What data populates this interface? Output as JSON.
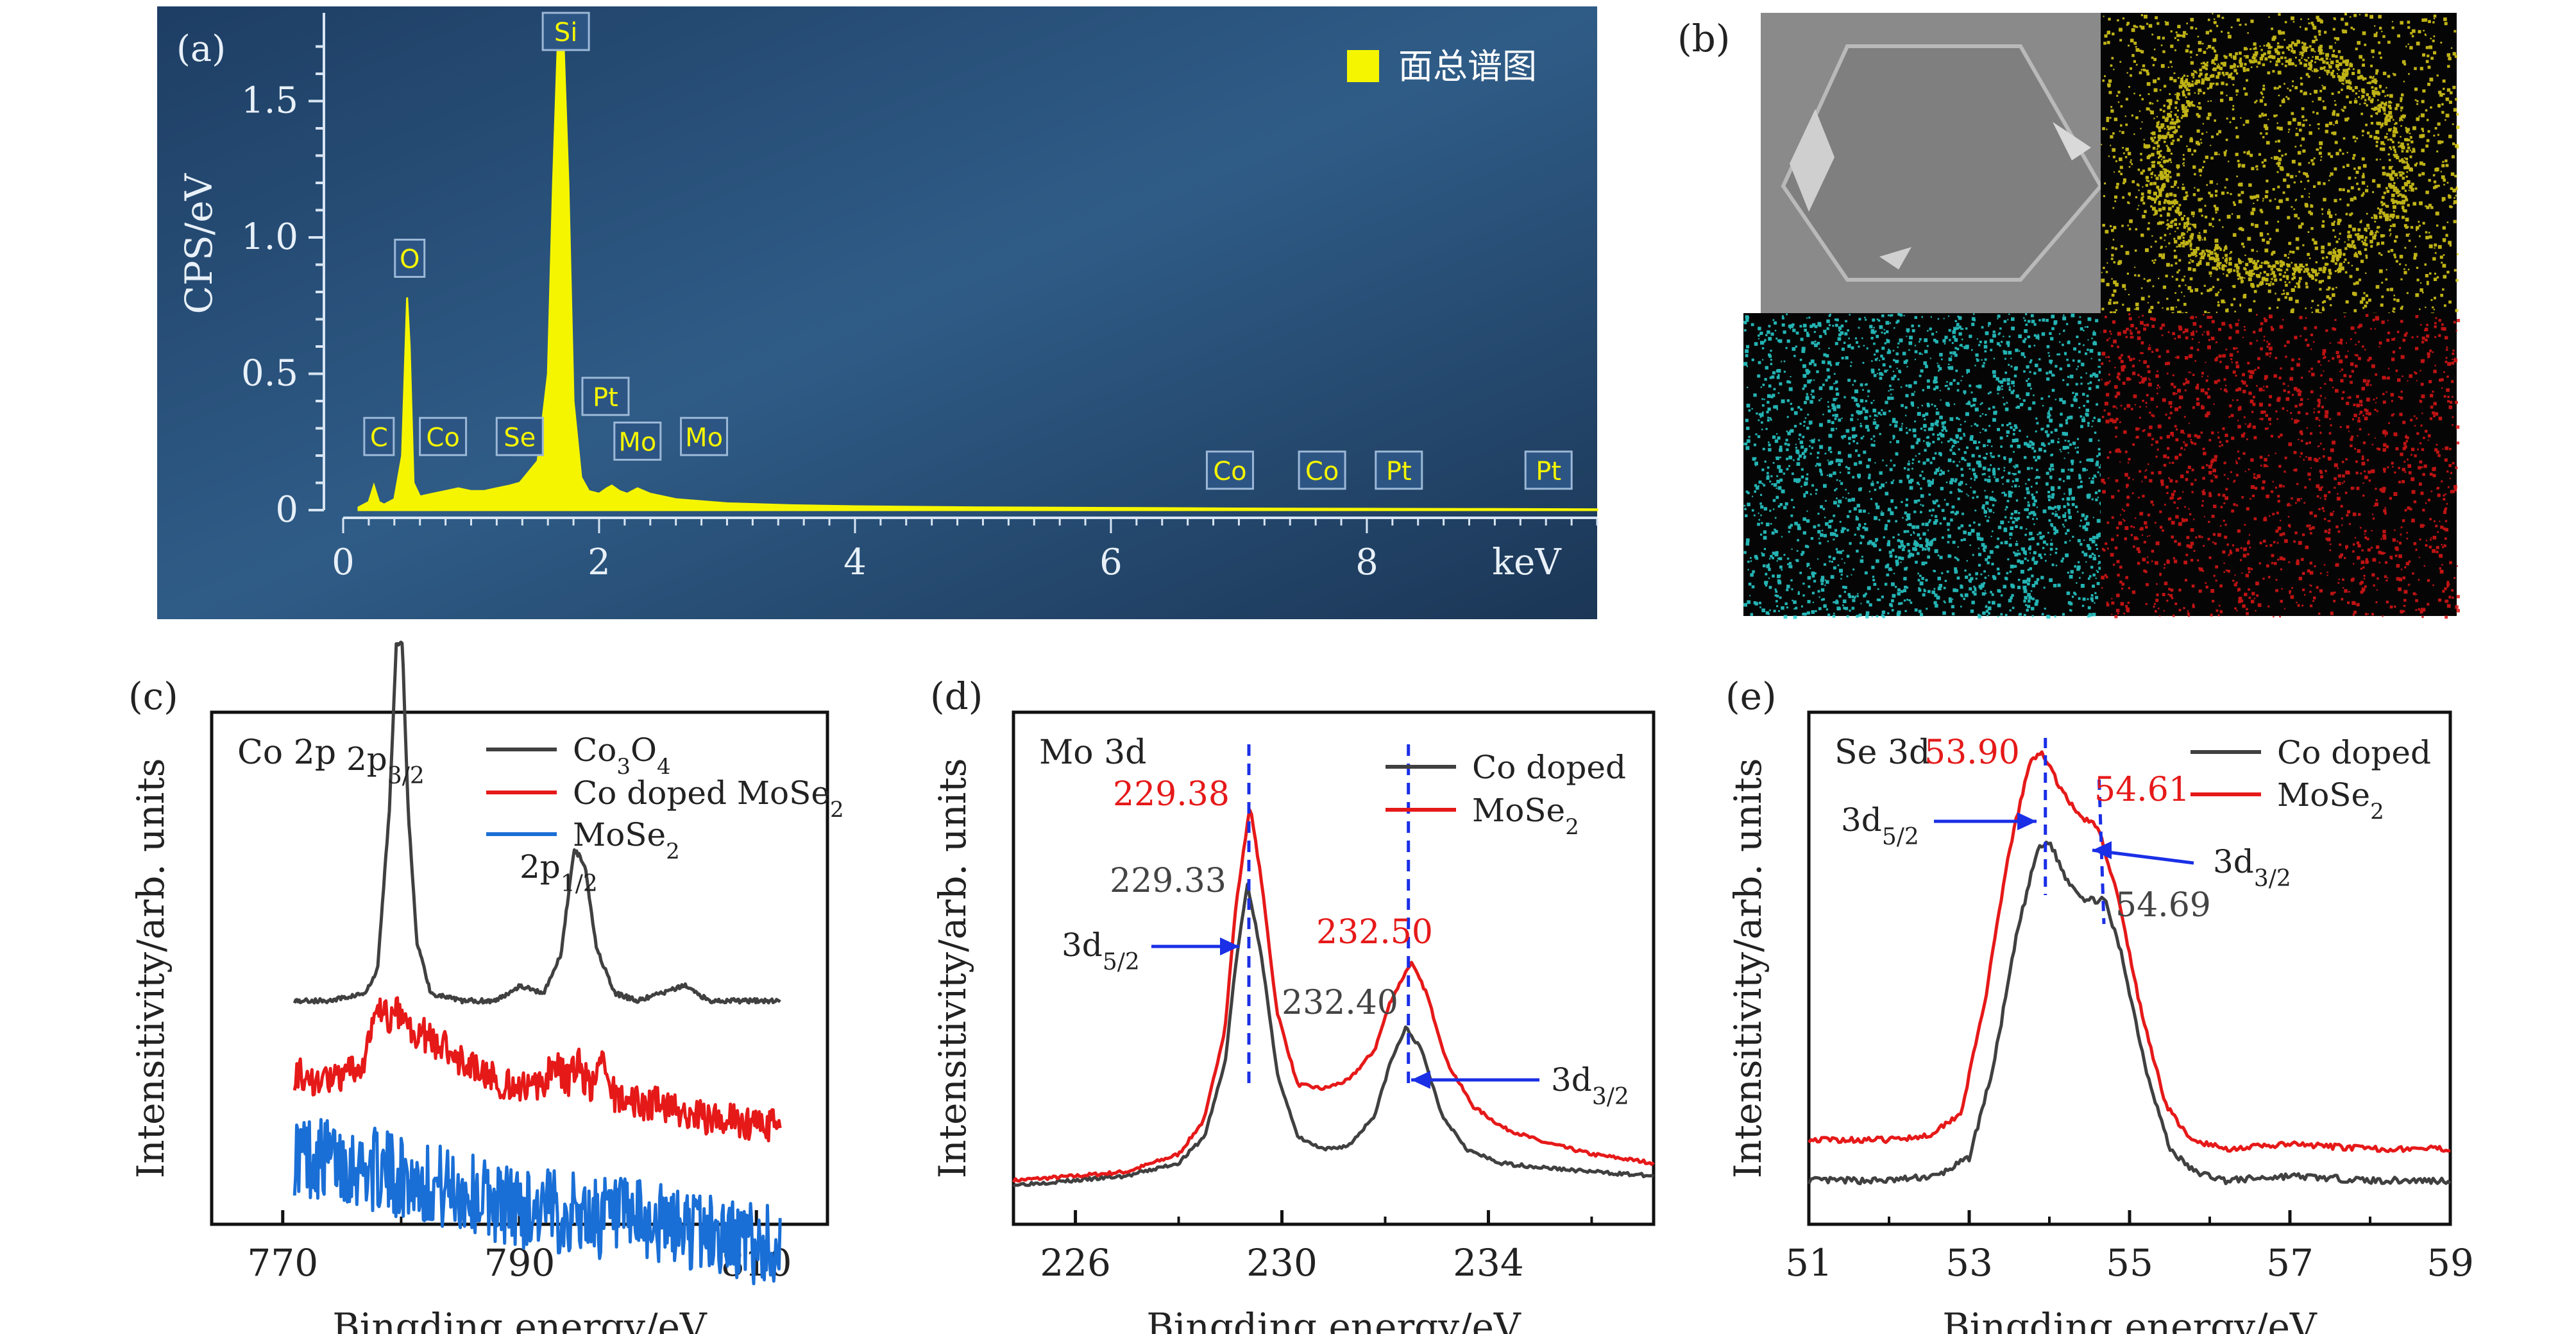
{
  "chart_data": [
    {
      "panel": "(a)",
      "type": "line",
      "title": "",
      "ylabel": "CPS/eV",
      "xlabel": "keV",
      "xlim": [
        0,
        9.8
      ],
      "ylim": [
        0,
        1.8
      ],
      "xticks": [
        "0",
        "2",
        "4",
        "6",
        "8"
      ],
      "yticks": [
        "0",
        "0.5",
        "1.0",
        "1.5"
      ],
      "legend": [
        "面总谱图"
      ],
      "colors": {
        "background": "#2b4f78",
        "spectrum": "#f5f500"
      },
      "series": [
        {
          "name": "面总谱图",
          "x": [
            0.12,
            0.2,
            0.24,
            0.28,
            0.32,
            0.4,
            0.46,
            0.5,
            0.52,
            0.55,
            0.6,
            0.7,
            0.8,
            0.9,
            1.0,
            1.1,
            1.2,
            1.3,
            1.38,
            1.45,
            1.52,
            1.6,
            1.64,
            1.68,
            1.72,
            1.76,
            1.8,
            1.86,
            1.92,
            2.0,
            2.06,
            2.1,
            2.16,
            2.22,
            2.3,
            2.4,
            2.6,
            3.0,
            3.5,
            4.0,
            5.0,
            6.0,
            7.0,
            8.0,
            9.0,
            9.8
          ],
          "y": [
            0.01,
            0.03,
            0.09,
            0.03,
            0.02,
            0.04,
            0.2,
            0.78,
            0.6,
            0.1,
            0.05,
            0.06,
            0.07,
            0.08,
            0.07,
            0.07,
            0.08,
            0.09,
            0.1,
            0.14,
            0.18,
            0.5,
            1.2,
            1.75,
            1.75,
            1.2,
            0.4,
            0.12,
            0.07,
            0.06,
            0.08,
            0.09,
            0.07,
            0.06,
            0.08,
            0.06,
            0.04,
            0.025,
            0.018,
            0.014,
            0.01,
            0.008,
            0.006,
            0.005,
            0.004,
            0.003
          ]
        }
      ],
      "peak_labels": [
        {
          "text": "C",
          "x": 0.28
        },
        {
          "text": "O",
          "x": 0.52
        },
        {
          "text": "Co",
          "x": 0.78
        },
        {
          "text": "Se",
          "x": 1.38
        },
        {
          "text": "Si",
          "x": 1.74
        },
        {
          "text": "Pt",
          "x": 2.05
        },
        {
          "text": "Mo",
          "x": 2.3
        },
        {
          "text": "Mo",
          "x": 2.82
        },
        {
          "text": "Co",
          "x": 6.93
        },
        {
          "text": "Co",
          "x": 7.65
        },
        {
          "text": "Pt",
          "x": 8.25
        },
        {
          "text": "Pt",
          "x": 9.42
        }
      ]
    },
    {
      "panel": "(b)",
      "type": "image",
      "colors": {
        "sem": "#8a8a8a",
        "map1": "#e2d21a",
        "map2": "#2ad4d4",
        "map3": "#e01616"
      }
    },
    {
      "panel": "(c)",
      "type": "line",
      "annotation_title": "Co 2p",
      "xlabel": "Bingding energy/eV",
      "ylabel": "Intensitivity/arb. units",
      "xlim": [
        764,
        816
      ],
      "xticks": [
        "770",
        "790",
        "810"
      ],
      "peak_annotations": [
        "2p3/2",
        "2p1/2"
      ],
      "legend": [
        "Co3O4",
        "Co doped MoSe2",
        "MoSe2"
      ],
      "colors": {
        "Co3O4": "#404040",
        "Co doped MoSe2": "#e61919",
        "MoSe2": "#1a6fd6"
      },
      "series": [
        {
          "name": "Co3O4",
          "x": [
            771,
            774,
            777,
            778,
            779,
            779.6,
            780.1,
            780.6,
            781.3,
            782.5,
            785,
            788,
            790,
            792,
            793.5,
            794.6,
            795.5,
            796.5,
            798,
            800,
            802,
            804,
            806,
            808,
            812
          ],
          "y": [
            0.38,
            0.38,
            0.39,
            0.42,
            0.63,
            0.85,
            0.85,
            0.63,
            0.46,
            0.39,
            0.38,
            0.38,
            0.4,
            0.39,
            0.44,
            0.58,
            0.56,
            0.45,
            0.39,
            0.38,
            0.39,
            0.4,
            0.38,
            0.38,
            0.38
          ]
        },
        {
          "name": "Co doped MoSe2",
          "x": [
            771,
            773,
            775,
            777,
            778,
            779,
            780,
            781,
            782,
            784,
            786,
            788,
            790,
            792,
            793,
            794,
            795,
            796,
            797,
            798,
            800,
            802,
            804,
            806,
            808,
            810,
            812
          ],
          "y": [
            0.31,
            0.3,
            0.3,
            0.33,
            0.4,
            0.38,
            0.39,
            0.36,
            0.36,
            0.34,
            0.32,
            0.3,
            0.29,
            0.29,
            0.33,
            0.3,
            0.32,
            0.29,
            0.32,
            0.28,
            0.27,
            0.27,
            0.26,
            0.25,
            0.25,
            0.24,
            0.24
          ]
        },
        {
          "name": "MoSe2",
          "x": [
            771,
            775,
            780,
            785,
            790,
            795,
            800,
            805,
            810,
            812
          ],
          "y": [
            0.2,
            0.19,
            0.17,
            0.15,
            0.13,
            0.12,
            0.11,
            0.1,
            0.08,
            0.08
          ]
        }
      ]
    },
    {
      "panel": "(d)",
      "type": "line",
      "annotation_title": "Mo 3d",
      "xlabel": "Bingding energy/eV",
      "ylabel": "Intensitivity/arb. units",
      "xlim": [
        224.8,
        237.2
      ],
      "xticks": [
        "226",
        "230",
        "234"
      ],
      "legend": [
        "Co doped",
        "MoSe2"
      ],
      "colors": {
        "Co doped": "#404040",
        "MoSe2": "#e61919",
        "marker": "#1a2fe6"
      },
      "peak_values": {
        "red_1": "229.38",
        "black_1": "229.33",
        "red_2": "232.50",
        "black_2": "232.40"
      },
      "peak_annotations": [
        "3d5/2",
        "3d3/2"
      ],
      "series": [
        {
          "name": "Co doped",
          "x": [
            224.8,
            226,
            227,
            228,
            228.5,
            228.9,
            229.1,
            229.33,
            229.6,
            229.9,
            230.3,
            230.8,
            231.3,
            231.8,
            232.1,
            232.4,
            232.7,
            233.1,
            233.6,
            234.2,
            235,
            236,
            237.2
          ],
          "y": [
            0.02,
            0.03,
            0.04,
            0.07,
            0.13,
            0.3,
            0.52,
            0.71,
            0.55,
            0.28,
            0.13,
            0.1,
            0.11,
            0.18,
            0.3,
            0.38,
            0.33,
            0.18,
            0.1,
            0.07,
            0.06,
            0.05,
            0.04
          ]
        },
        {
          "name": "MoSe2",
          "x": [
            224.8,
            226,
            227,
            228,
            228.5,
            228.9,
            229.1,
            229.38,
            229.6,
            229.9,
            230.3,
            230.8,
            231.3,
            231.8,
            232.1,
            232.5,
            232.8,
            233.2,
            233.7,
            234.3,
            235,
            236,
            237.2
          ],
          "y": [
            0.03,
            0.04,
            0.05,
            0.09,
            0.17,
            0.38,
            0.65,
            0.89,
            0.72,
            0.42,
            0.25,
            0.24,
            0.26,
            0.33,
            0.44,
            0.53,
            0.46,
            0.3,
            0.2,
            0.15,
            0.12,
            0.09,
            0.07
          ]
        }
      ]
    },
    {
      "panel": "(e)",
      "type": "line",
      "annotation_title": "Se 3d",
      "xlabel": "Bingding energy/eV",
      "ylabel": "Intensitivity/arb. units",
      "xlim": [
        51,
        59
      ],
      "xticks": [
        "51",
        "53",
        "55",
        "57",
        "59"
      ],
      "legend": [
        "Co doped",
        "MoSe2"
      ],
      "colors": {
        "Co doped": "#404040",
        "MoSe2": "#e61919",
        "marker": "#1a2fe6"
      },
      "peak_values": {
        "red_1": "53.90",
        "red_2": "54.61",
        "black_2": "54.69"
      },
      "peak_annotations": [
        "3d5/2",
        "3d3/2"
      ],
      "series": [
        {
          "name": "Co doped",
          "x": [
            51,
            52,
            52.6,
            53,
            53.3,
            53.6,
            53.85,
            54.0,
            54.2,
            54.45,
            54.69,
            54.9,
            55.2,
            55.5,
            55.8,
            56.2,
            57,
            58,
            59
          ],
          "y": [
            0.05,
            0.05,
            0.06,
            0.1,
            0.3,
            0.6,
            0.78,
            0.8,
            0.72,
            0.67,
            0.67,
            0.55,
            0.3,
            0.12,
            0.07,
            0.05,
            0.06,
            0.05,
            0.05
          ]
        },
        {
          "name": "MoSe2",
          "x": [
            51,
            52,
            52.5,
            52.9,
            53.2,
            53.5,
            53.75,
            53.9,
            54.1,
            54.35,
            54.61,
            54.85,
            55.15,
            55.45,
            55.75,
            56.2,
            57,
            58,
            59
          ],
          "y": [
            0.14,
            0.14,
            0.15,
            0.2,
            0.45,
            0.78,
            0.97,
            1.0,
            0.93,
            0.86,
            0.83,
            0.68,
            0.42,
            0.22,
            0.14,
            0.12,
            0.13,
            0.12,
            0.12
          ]
        }
      ]
    }
  ]
}
